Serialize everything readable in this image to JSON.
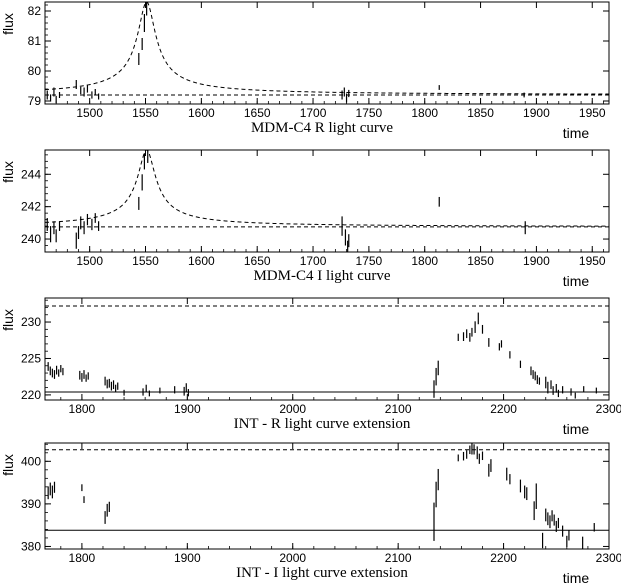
{
  "chart_data": [
    {
      "type": "line",
      "caption": "MDM-C4 R light curve",
      "xlabel": "time",
      "ylabel": "flux",
      "xlim": [
        1460,
        1965
      ],
      "ylim": [
        78.9,
        82.3
      ],
      "xticks": [
        1500,
        1550,
        1600,
        1650,
        1700,
        1750,
        1800,
        1850,
        1900,
        1950
      ],
      "yticks": [
        79,
        80,
        81,
        82
      ],
      "baselines": [
        {
          "style": "dashed",
          "y": 79.2
        }
      ],
      "model": {
        "style": "dashed",
        "peak_time": 1551,
        "peak_flux": 82.3,
        "baseline": 79.2
      },
      "series": [
        {
          "style": "errorbar",
          "points": [
            [
              1462,
              79.2,
              0.15
            ],
            [
              1465,
              79.1,
              0.12
            ],
            [
              1468,
              79.3,
              0.15
            ],
            [
              1470,
              79.05,
              0.12
            ],
            [
              1473,
              79.2,
              0.1
            ],
            [
              1488,
              79.55,
              0.15
            ],
            [
              1492,
              79.35,
              0.12
            ],
            [
              1495,
              79.3,
              0.15
            ],
            [
              1498,
              79.4,
              0.12
            ],
            [
              1502,
              79.2,
              0.12
            ],
            [
              1505,
              79.3,
              0.1
            ],
            [
              1508,
              79.15,
              0.1
            ],
            [
              1544,
              80.4,
              0.2
            ],
            [
              1547,
              80.9,
              0.2
            ],
            [
              1549,
              81.6,
              0.3
            ],
            [
              1551,
              82.1,
              0.25
            ],
            [
              1726,
              79.2,
              0.15
            ],
            [
              1728,
              79.3,
              0.15
            ],
            [
              1730,
              79.1,
              0.15
            ],
            [
              1732,
              79.25,
              0.12
            ],
            [
              1813,
              79.45,
              0.08
            ],
            [
              1889,
              79.2,
              0.08
            ]
          ]
        }
      ]
    },
    {
      "type": "line",
      "caption": "MDM-C4 I light curve",
      "xlabel": "time",
      "ylabel": "flux",
      "xlim": [
        1460,
        1965
      ],
      "ylim": [
        239.2,
        245.5
      ],
      "xticks": [
        1500,
        1550,
        1600,
        1650,
        1700,
        1750,
        1800,
        1850,
        1900,
        1950
      ],
      "yticks": [
        240,
        242,
        244
      ],
      "baselines": [
        {
          "style": "dashed",
          "y": 240.75
        }
      ],
      "model": {
        "style": "dashed",
        "peak_time": 1551,
        "peak_flux": 245.5,
        "baseline": 240.75
      },
      "series": [
        {
          "style": "errorbar",
          "points": [
            [
              1462,
              240.9,
              0.4
            ],
            [
              1465,
              240.3,
              0.5
            ],
            [
              1468,
              240.7,
              0.4
            ],
            [
              1470,
              240.2,
              0.4
            ],
            [
              1473,
              240.8,
              0.3
            ],
            [
              1488,
              239.9,
              0.5
            ],
            [
              1490,
              240.4,
              0.4
            ],
            [
              1492,
              241.0,
              0.4
            ],
            [
              1495,
              240.7,
              0.4
            ],
            [
              1498,
              241.2,
              0.35
            ],
            [
              1502,
              240.9,
              0.35
            ],
            [
              1505,
              241.3,
              0.3
            ],
            [
              1508,
              240.8,
              0.3
            ],
            [
              1544,
              242.2,
              0.4
            ],
            [
              1547,
              243.5,
              0.5
            ],
            [
              1549,
              244.8,
              0.5
            ],
            [
              1552,
              245.2,
              0.5
            ],
            [
              1726,
              240.8,
              0.6
            ],
            [
              1729,
              240.1,
              0.5
            ],
            [
              1731,
              239.5,
              0.4
            ],
            [
              1732,
              239.9,
              0.4
            ],
            [
              1813,
              242.3,
              0.3
            ],
            [
              1890,
              240.7,
              0.4
            ]
          ]
        }
      ]
    },
    {
      "type": "line",
      "caption": "INT - R light curve extension",
      "xlabel": "time",
      "ylabel": "flux",
      "xlim": [
        1765,
        2300
      ],
      "ylim": [
        219.3,
        233.3
      ],
      "xticks": [
        1800,
        1900,
        2000,
        2100,
        2200,
        2300
      ],
      "yticks": [
        220,
        225,
        230
      ],
      "baselines": [
        {
          "style": "dashed",
          "y": 232.2
        },
        {
          "style": "solid",
          "y": 220.4
        }
      ],
      "series": [
        {
          "style": "errorbar",
          "points": [
            [
              1768,
              223.9,
              0.6
            ],
            [
              1770,
              223.3,
              0.6
            ],
            [
              1772,
              223.0,
              0.6
            ],
            [
              1774,
              222.8,
              0.6
            ],
            [
              1776,
              223.4,
              0.6
            ],
            [
              1778,
              223.0,
              0.5
            ],
            [
              1780,
              223.6,
              0.5
            ],
            [
              1782,
              223.2,
              0.5
            ],
            [
              1798,
              222.7,
              0.6
            ],
            [
              1800,
              222.4,
              0.6
            ],
            [
              1802,
              222.8,
              0.6
            ],
            [
              1804,
              222.3,
              0.5
            ],
            [
              1806,
              222.6,
              0.5
            ],
            [
              1822,
              221.9,
              0.6
            ],
            [
              1824,
              221.5,
              0.6
            ],
            [
              1826,
              221.6,
              0.6
            ],
            [
              1828,
              221.2,
              0.6
            ],
            [
              1830,
              221.4,
              0.6
            ],
            [
              1832,
              220.9,
              0.5
            ],
            [
              1834,
              221.2,
              0.5
            ],
            [
              1840,
              220.3,
              0.4
            ],
            [
              1858,
              220.4,
              0.5
            ],
            [
              1861,
              220.9,
              0.5
            ],
            [
              1864,
              220.2,
              0.4
            ],
            [
              1874,
              220.6,
              0.4
            ],
            [
              1888,
              220.7,
              0.5
            ],
            [
              1897,
              220.5,
              0.6
            ],
            [
              1899,
              221.0,
              0.6
            ],
            [
              1901,
              220.3,
              0.5
            ],
            [
              2134,
              220.8,
              1.2
            ],
            [
              2136,
              222.5,
              1.2
            ],
            [
              2138,
              223.7,
              1.0
            ],
            [
              2157,
              227.9,
              0.5
            ],
            [
              2162,
              228.0,
              0.6
            ],
            [
              2165,
              228.4,
              0.6
            ],
            [
              2168,
              227.9,
              0.6
            ],
            [
              2170,
              228.6,
              0.6
            ],
            [
              2173,
              229.3,
              0.8
            ],
            [
              2176,
              230.5,
              0.8
            ],
            [
              2180,
              229.0,
              0.6
            ],
            [
              2186,
              227.2,
              0.6
            ],
            [
              2196,
              226.6,
              0.5
            ],
            [
              2198,
              227.0,
              0.5
            ],
            [
              2206,
              225.5,
              0.5
            ],
            [
              2216,
              224.2,
              0.5
            ],
            [
              2226,
              223.3,
              0.6
            ],
            [
              2228,
              222.8,
              0.6
            ],
            [
              2230,
              222.6,
              0.6
            ],
            [
              2232,
              222.1,
              0.6
            ],
            [
              2234,
              221.9,
              0.5
            ],
            [
              2240,
              221.7,
              0.8
            ],
            [
              2242,
              221.0,
              0.8
            ],
            [
              2245,
              221.4,
              0.6
            ],
            [
              2247,
              220.6,
              0.6
            ],
            [
              2250,
              220.9,
              0.6
            ],
            [
              2252,
              220.2,
              0.5
            ],
            [
              2256,
              220.7,
              0.5
            ],
            [
              2264,
              220.4,
              0.5
            ],
            [
              2268,
              219.9,
              0.4
            ],
            [
              2276,
              220.8,
              0.4
            ],
            [
              2288,
              220.6,
              0.4
            ]
          ]
        }
      ]
    },
    {
      "type": "line",
      "caption": "INT - I light curve extension",
      "xlabel": "time",
      "ylabel": "flux",
      "xlim": [
        1765,
        2300
      ],
      "ylim": [
        379.4,
        404.3
      ],
      "xticks": [
        1800,
        1900,
        2000,
        2100,
        2200,
        2300
      ],
      "yticks": [
        380,
        390,
        400
      ],
      "baselines": [
        {
          "style": "dashed",
          "y": 402.7
        },
        {
          "style": "solid",
          "y": 383.8
        }
      ],
      "series": [
        {
          "style": "errorbar",
          "points": [
            [
              1768,
              392.6,
              1.5
            ],
            [
              1770,
              393.5,
              1.5
            ],
            [
              1772,
              392.8,
              1.5
            ],
            [
              1774,
              393.9,
              1.3
            ],
            [
              1800,
              393.8,
              0.8
            ],
            [
              1802,
              391.0,
              0.8
            ],
            [
              1822,
              386.8,
              1.5
            ],
            [
              1824,
              388.5,
              1.5
            ],
            [
              1826,
              389.3,
              1.2
            ],
            [
              2134,
              385.8,
              4.5
            ],
            [
              2136,
              392.2,
              3.0
            ],
            [
              2138,
              395.7,
              2.5
            ],
            [
              2157,
              400.8,
              0.8
            ],
            [
              2162,
              401.2,
              1.0
            ],
            [
              2165,
              401.6,
              1.0
            ],
            [
              2168,
              402.7,
              1.0
            ],
            [
              2170,
              403.1,
              1.5
            ],
            [
              2172,
              402.8,
              1.2
            ],
            [
              2175,
              402.0,
              1.5
            ],
            [
              2177,
              400.6,
              1.2
            ],
            [
              2180,
              401.3,
              1.0
            ],
            [
              2186,
              397.9,
              1.5
            ],
            [
              2188,
              399.0,
              1.5
            ],
            [
              2203,
              397.0,
              1.5
            ],
            [
              2206,
              395.8,
              1.2
            ],
            [
              2216,
              394.2,
              1.5
            ],
            [
              2220,
              392.8,
              1.5
            ],
            [
              2222,
              392.4,
              1.5
            ],
            [
              2229,
              388.4,
              2.2
            ],
            [
              2231,
              391.8,
              3.0
            ],
            [
              2237,
              381.4,
              1.8
            ],
            [
              2240,
              387.4,
              1.5
            ],
            [
              2242,
              386.5,
              1.5
            ],
            [
              2244,
              385.8,
              1.5
            ],
            [
              2246,
              387.2,
              1.3
            ],
            [
              2248,
              386.2,
              1.3
            ],
            [
              2250,
              384.7,
              1.3
            ],
            [
              2252,
              385.5,
              1.2
            ],
            [
              2256,
              383.6,
              1.3
            ],
            [
              2260,
              381.2,
              1.3
            ],
            [
              2262,
              382.6,
              1.2
            ],
            [
              2275,
              380.8,
              1.5
            ],
            [
              2286,
              384.5,
              1.0
            ]
          ]
        }
      ]
    }
  ]
}
